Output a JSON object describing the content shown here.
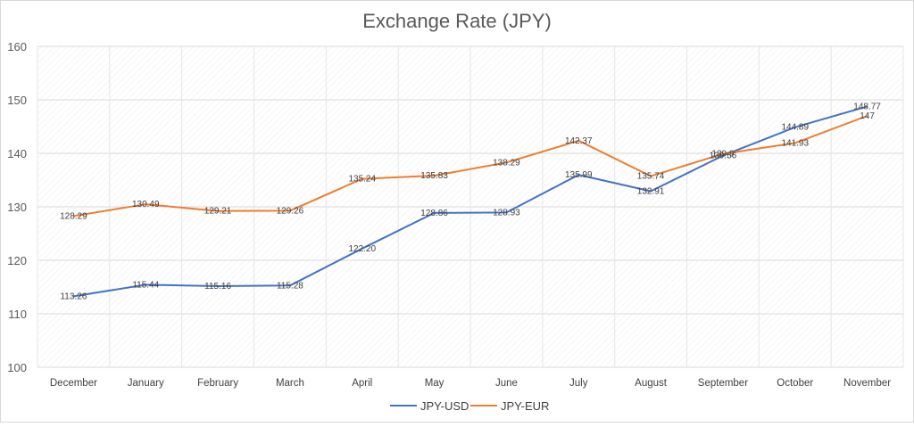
{
  "chart_data": {
    "type": "line",
    "title": "Exchange Rate (JPY)",
    "xlabel": "",
    "ylabel": "",
    "categories": [
      "December",
      "January",
      "February",
      "March",
      "April",
      "May",
      "June",
      "July",
      "August",
      "September",
      "October",
      "November"
    ],
    "ylim": [
      100,
      160
    ],
    "yticks": [
      100,
      110,
      120,
      130,
      140,
      150,
      160
    ],
    "grid": true,
    "legend_position": "bottom",
    "series": [
      {
        "name": "JPY-USD",
        "color": "#4472C4",
        "values": [
          113.26,
          115.44,
          115.16,
          115.28,
          122.2,
          128.86,
          128.93,
          135.99,
          132.91,
          139.56,
          144.89,
          148.77
        ],
        "labels": [
          "113.26",
          "115.44",
          "115.16",
          "115.28",
          "122.20",
          "128.86",
          "128.93",
          "135.99",
          "132.91",
          "139.56",
          "144.89",
          "148.77"
        ]
      },
      {
        "name": "JPY-EUR",
        "color": "#ED7D31",
        "values": [
          128.29,
          130.49,
          129.21,
          129.26,
          135.24,
          135.83,
          138.29,
          142.37,
          135.74,
          139.9,
          141.93,
          147
        ],
        "labels": [
          "128.29",
          "130.49",
          "129.21",
          "129.26",
          "135.24",
          "135.83",
          "138.29",
          "142.37",
          "135.74",
          "139.9",
          "141.93",
          "147"
        ]
      }
    ]
  }
}
